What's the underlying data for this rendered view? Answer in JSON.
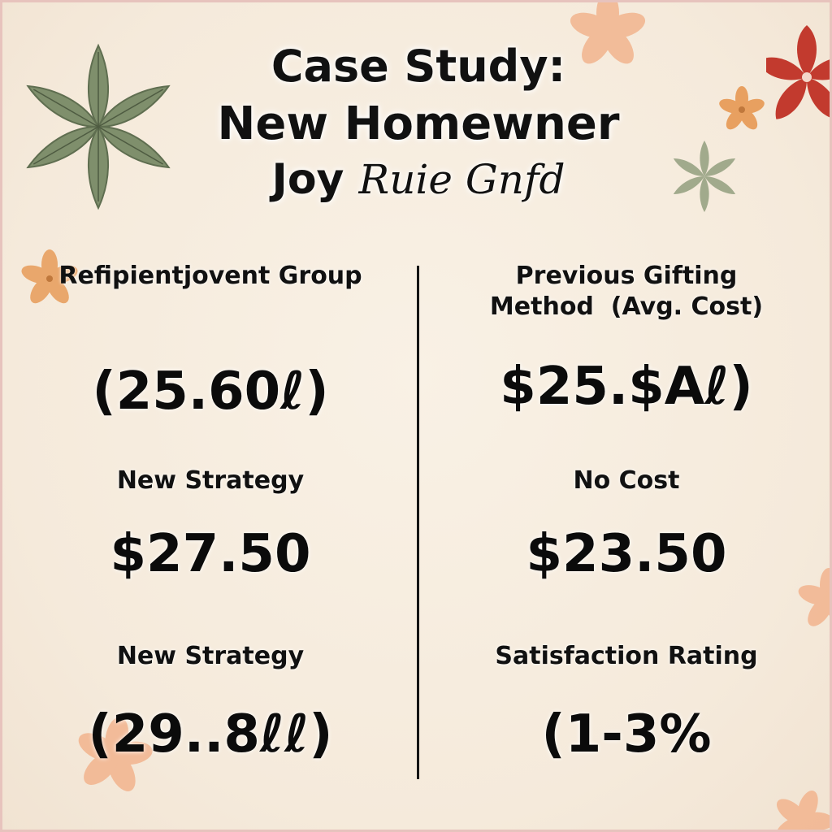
{
  "title": {
    "line1": "Case Study:",
    "line2": "New Homewner",
    "line3_bold": "Joy",
    "line3_script": "Ruie Gnfd"
  },
  "left_column": {
    "header_label": "Refipientjovent Group",
    "header_value": "(25.60ℓ)",
    "mid_label": "New Strategy",
    "mid_value": "$27.50",
    "bottom_label": "New Strategy",
    "bottom_value": "(29..8ℓℓ)"
  },
  "right_column": {
    "header_label_line1": "Previous Gifting",
    "header_label_line2": "Method  (Avg. Cost)",
    "header_value": "$25.$Aℓ)",
    "mid_label": "No Cost",
    "mid_value": "$23.50",
    "bottom_label": "Satisfaction Rating",
    "bottom_value": "(1-3%"
  },
  "colors": {
    "background": "#f6ecde",
    "border": "#e7c3bd",
    "leaf_green": "#7f8f6c",
    "flower_orange": "#e8a060",
    "flower_peach": "#f2b48e",
    "flower_red": "#c23a2e"
  },
  "icons": {
    "top_left": "green-leaf-star-icon",
    "top_right_red": "red-flower-icon",
    "decor": "orange-flower-icon"
  }
}
